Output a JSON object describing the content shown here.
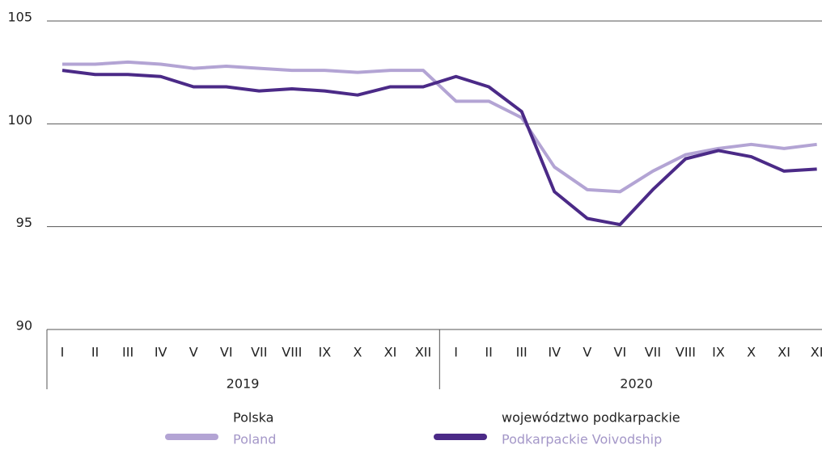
{
  "chart_data": {
    "type": "line",
    "categories": [
      "I",
      "II",
      "III",
      "IV",
      "V",
      "VI",
      "VII",
      "VIII",
      "IX",
      "X",
      "XI",
      "XII",
      "I",
      "II",
      "III",
      "IV",
      "V",
      "VI",
      "VII",
      "VIII",
      "IX",
      "X",
      "XI",
      "XI"
    ],
    "groups": [
      "2019",
      "2020"
    ],
    "series": [
      {
        "name": "Polska",
        "subname": "Poland",
        "color": "#b3a4d4",
        "values": [
          102.9,
          102.9,
          103.0,
          102.9,
          102.7,
          102.8,
          102.7,
          102.6,
          102.6,
          102.5,
          102.6,
          102.6,
          101.1,
          101.1,
          100.3,
          97.9,
          96.8,
          96.7,
          97.7,
          98.5,
          98.8,
          99.0,
          98.8,
          99.0
        ]
      },
      {
        "name": "województwo podkarpackie",
        "subname": "Podkarpackie Voivodship",
        "color": "#4b2a87",
        "values": [
          102.6,
          102.4,
          102.4,
          102.3,
          101.8,
          101.8,
          101.6,
          101.7,
          101.6,
          101.4,
          101.8,
          101.8,
          102.3,
          101.8,
          100.6,
          96.7,
          95.4,
          95.1,
          96.8,
          98.3,
          98.7,
          98.4,
          97.7,
          97.8
        ]
      }
    ],
    "ylim": [
      90,
      105
    ],
    "yticks": [
      90,
      95,
      100,
      105
    ],
    "grid": true
  }
}
